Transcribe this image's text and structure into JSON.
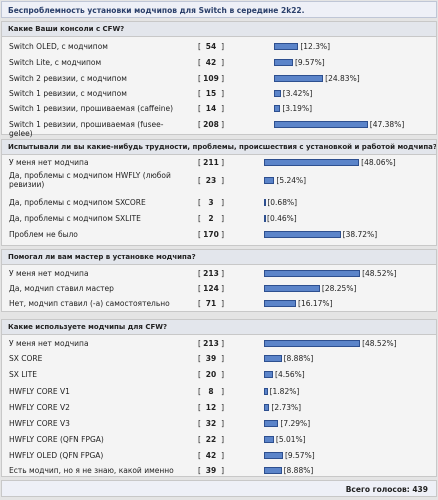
{
  "title": "Беспроблемность установки модчипов для Switch в середине 2k22.",
  "sections": [
    {
      "question": "Какие Ваши консоли с CFW?",
      "options": [
        {
          "label": "Switch OLED, с модчипом",
          "votes": 54,
          "percent": 12.3,
          "percent_label": "12.3%"
        },
        {
          "label": "Switch Lite, с модчипом",
          "votes": 42,
          "percent": 9.57,
          "percent_label": "9.57%"
        },
        {
          "label": "Switch 2 ревизии, с модчипом",
          "votes": 109,
          "percent": 24.83,
          "percent_label": "24.83%"
        },
        {
          "label": "Switch 1 ревизии, с модчипом",
          "votes": 15,
          "percent": 3.42,
          "percent_label": "3.42%"
        },
        {
          "label": "Switch 1 ревизии, прошиваемая (caffeine)",
          "votes": 14,
          "percent": 3.19,
          "percent_label": "3.19%"
        },
        {
          "label": "Switch 1 ревизии, прошиваемая (fusee-gelee)",
          "votes": 208,
          "percent": 47.38,
          "percent_label": "47.38%"
        }
      ]
    },
    {
      "question": "Испытывали ли вы какие-нибудь трудности, проблемы, происшествия с установкой и работой модчипа?",
      "options": [
        {
          "label": "У меня нет модчипа",
          "votes": 211,
          "percent": 48.06,
          "percent_label": "48.06%"
        },
        {
          "label": "Да, проблемы с модчипом HWFLY (любой ревизии)",
          "votes": 23,
          "percent": 5.24,
          "percent_label": "5.24%"
        },
        {
          "label": "Да, проблемы с модчипом SXCORE",
          "votes": 3,
          "percent": 0.68,
          "percent_label": "0.68%"
        },
        {
          "label": "Да, проблемы с модчипом SXLITE",
          "votes": 2,
          "percent": 0.46,
          "percent_label": "0.46%"
        },
        {
          "label": "Проблем не было",
          "votes": 170,
          "percent": 38.72,
          "percent_label": "38.72%"
        }
      ]
    },
    {
      "question": "Помогал ли вам мастер в установке модчипа?",
      "options": [
        {
          "label": "У меня нет модчипа",
          "votes": 213,
          "percent": 48.52,
          "percent_label": "48.52%"
        },
        {
          "label": "Да, модчип ставил мастер",
          "votes": 124,
          "percent": 28.25,
          "percent_label": "28.25%"
        },
        {
          "label": "Нет, модчип ставил (-а) самостоятельно",
          "votes": 71,
          "percent": 16.17,
          "percent_label": "16.17%"
        }
      ]
    },
    {
      "question": "Какие используете модчипы для CFW?",
      "options": [
        {
          "label": "У меня нет модчипа",
          "votes": 213,
          "percent": 48.52,
          "percent_label": "48.52%"
        },
        {
          "label": "SX CORE",
          "votes": 39,
          "percent": 8.88,
          "percent_label": "8.88%"
        },
        {
          "label": "SX LITE",
          "votes": 20,
          "percent": 4.56,
          "percent_label": "4.56%"
        },
        {
          "label": "HWFLY CORE V1",
          "votes": 8,
          "percent": 1.82,
          "percent_label": "1.82%"
        },
        {
          "label": "HWFLY CORE V2",
          "votes": 12,
          "percent": 2.73,
          "percent_label": "2.73%"
        },
        {
          "label": "HWFLY CORE V3",
          "votes": 32,
          "percent": 7.29,
          "percent_label": "7.29%"
        },
        {
          "label": "HWFLY CORE (QFN FPGA)",
          "votes": 22,
          "percent": 5.01,
          "percent_label": "5.01%"
        },
        {
          "label": "HWFLY OLED (QFN FPGA)",
          "votes": 42,
          "percent": 9.57,
          "percent_label": "9.57%"
        },
        {
          "label": "Есть модчип, но я не знаю, какой именно",
          "votes": 39,
          "percent": 8.88,
          "percent_label": "8.88%"
        }
      ]
    }
  ],
  "total_label": "Всего голосов:",
  "total": 439
}
